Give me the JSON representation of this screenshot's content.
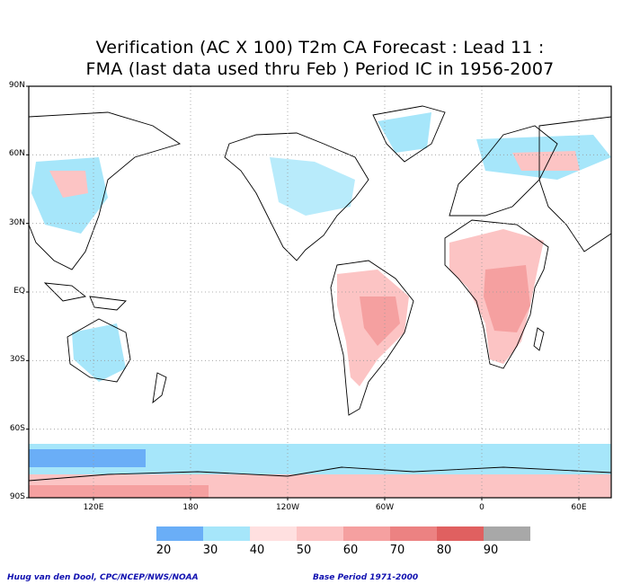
{
  "title_line1": "Verification (AC X 100) T2m CA Forecast : Lead 11 :",
  "title_line2": "FMA (last data used thru Feb ) Period IC in 1956-2007",
  "map": {
    "lat_labels": [
      {
        "text": "90N",
        "lat": 90
      },
      {
        "text": "60N",
        "lat": 60
      },
      {
        "text": "30N",
        "lat": 30
      },
      {
        "text": "EQ",
        "lat": 0
      },
      {
        "text": "30S",
        "lat": -30
      },
      {
        "text": "60S",
        "lat": -60
      },
      {
        "text": "90S",
        "lat": -90
      }
    ],
    "lon_labels": [
      {
        "text": "120E",
        "lon": 120
      },
      {
        "text": "180",
        "lon": 180
      },
      {
        "text": "120W",
        "lon": 240
      },
      {
        "text": "60W",
        "lon": 300
      },
      {
        "text": "0",
        "lon": 360
      },
      {
        "text": "60E",
        "lon": 420
      }
    ],
    "lon_range": [
      80,
      440
    ],
    "lat_range": [
      -90,
      90
    ],
    "grid_lons": [
      120,
      180,
      240,
      300,
      360,
      420
    ],
    "grid_lats": [
      60,
      30,
      0,
      -30,
      -60
    ]
  },
  "colorbar": {
    "colors": [
      "#6aaef7",
      "#a6e6fa",
      "#ffe0e0",
      "#fcc4c4",
      "#f5a0a0",
      "#ec8282",
      "#e06060",
      "#a8a8a8"
    ],
    "labels": [
      "20",
      "30",
      "40",
      "50",
      "60",
      "70",
      "80",
      "90"
    ]
  },
  "footer_left": "Huug van den Dool, CPC/NCEP/NWS/NOAA",
  "footer_right": "Base Period 1971-2000"
}
